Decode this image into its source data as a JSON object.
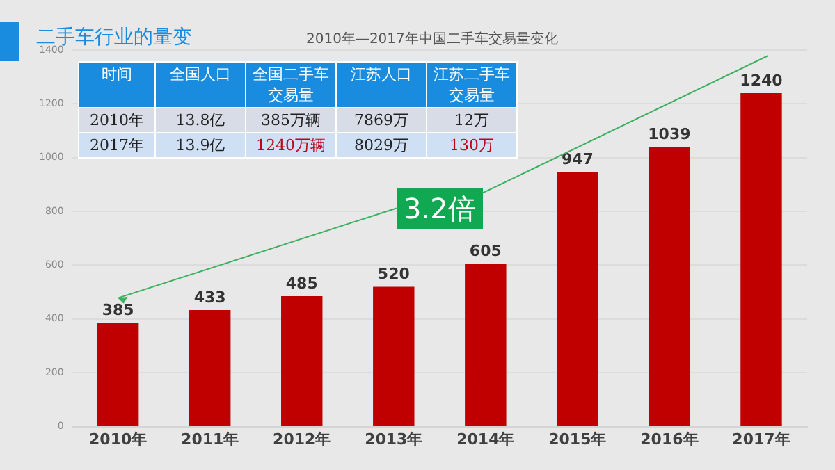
{
  "chart_data": {
    "type": "bar",
    "title": "2010年—2017年中国二手车交易量变化",
    "subtitle": "二手车行业的量变",
    "categories": [
      "2010年",
      "2011年",
      "2012年",
      "2013年",
      "2014年",
      "2015年",
      "2016年",
      "2017年"
    ],
    "values": [
      385,
      433,
      485,
      520,
      605,
      947,
      1039,
      1240
    ],
    "color": "#c00000",
    "ylim": [
      0,
      1400
    ],
    "yticks": [
      0,
      200,
      400,
      600,
      800,
      1000,
      1200,
      1400
    ],
    "grid": "y",
    "data_labels": true,
    "annotations": [
      "3.2倍",
      "时间",
      "全国人口",
      "全国二手车交易量",
      "江苏人口",
      "江苏二手车交易量",
      "2010年",
      "13.8亿",
      "385万辆",
      "7869万",
      "12万",
      "2017年",
      "13.9亿",
      "1240万辆",
      "8029万",
      "130万"
    ]
  }
}
